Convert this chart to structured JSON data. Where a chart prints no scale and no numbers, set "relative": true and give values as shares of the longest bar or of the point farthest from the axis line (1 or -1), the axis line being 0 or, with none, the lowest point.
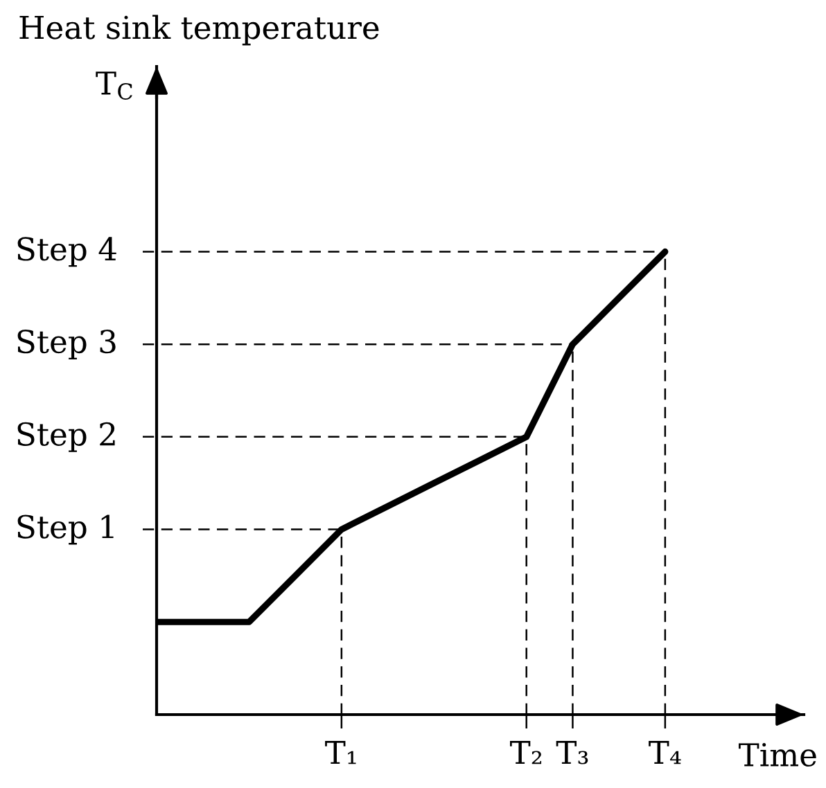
{
  "chart_data": {
    "type": "line",
    "title": "Heat sink temperature",
    "ylabel": "T$_{C}$",
    "xlabel": "Time",
    "relative": true,
    "categories": [
      null,
      null,
      null,
      null,
      "T₁",
      null,
      null,
      null,
      "T₂",
      "T₃",
      null,
      "T₄"
    ],
    "series": [
      {
        "color": "#000000",
        "values": [
          0.2,
          0.2,
          0.2,
          0.3,
          0.4,
          0.45,
          0.5,
          0.55,
          0.6,
          0.8,
          0.9,
          1.0
        ]
      }
    ],
    "ref_lines": [
      {
        "axis": "y",
        "value": 0.4,
        "label": "Step 1",
        "line_style": "dashed"
      },
      {
        "axis": "y",
        "value": 0.6,
        "label": "Step 2",
        "line_style": "dashed"
      },
      {
        "axis": "y",
        "value": 0.8,
        "label": "Step 3",
        "line_style": "dashed"
      },
      {
        "axis": "y",
        "value": 1.0,
        "label": "Step 4",
        "line_style": "dashed"
      },
      {
        "axis": "x",
        "value": "T₁",
        "line_style": "dashed"
      },
      {
        "axis": "x",
        "value": "T₂",
        "line_style": "dashed"
      },
      {
        "axis": "x",
        "value": "T₃",
        "line_style": "dashed"
      },
      {
        "axis": "x",
        "value": "T₄",
        "line_style": "dashed"
      }
    ]
  }
}
